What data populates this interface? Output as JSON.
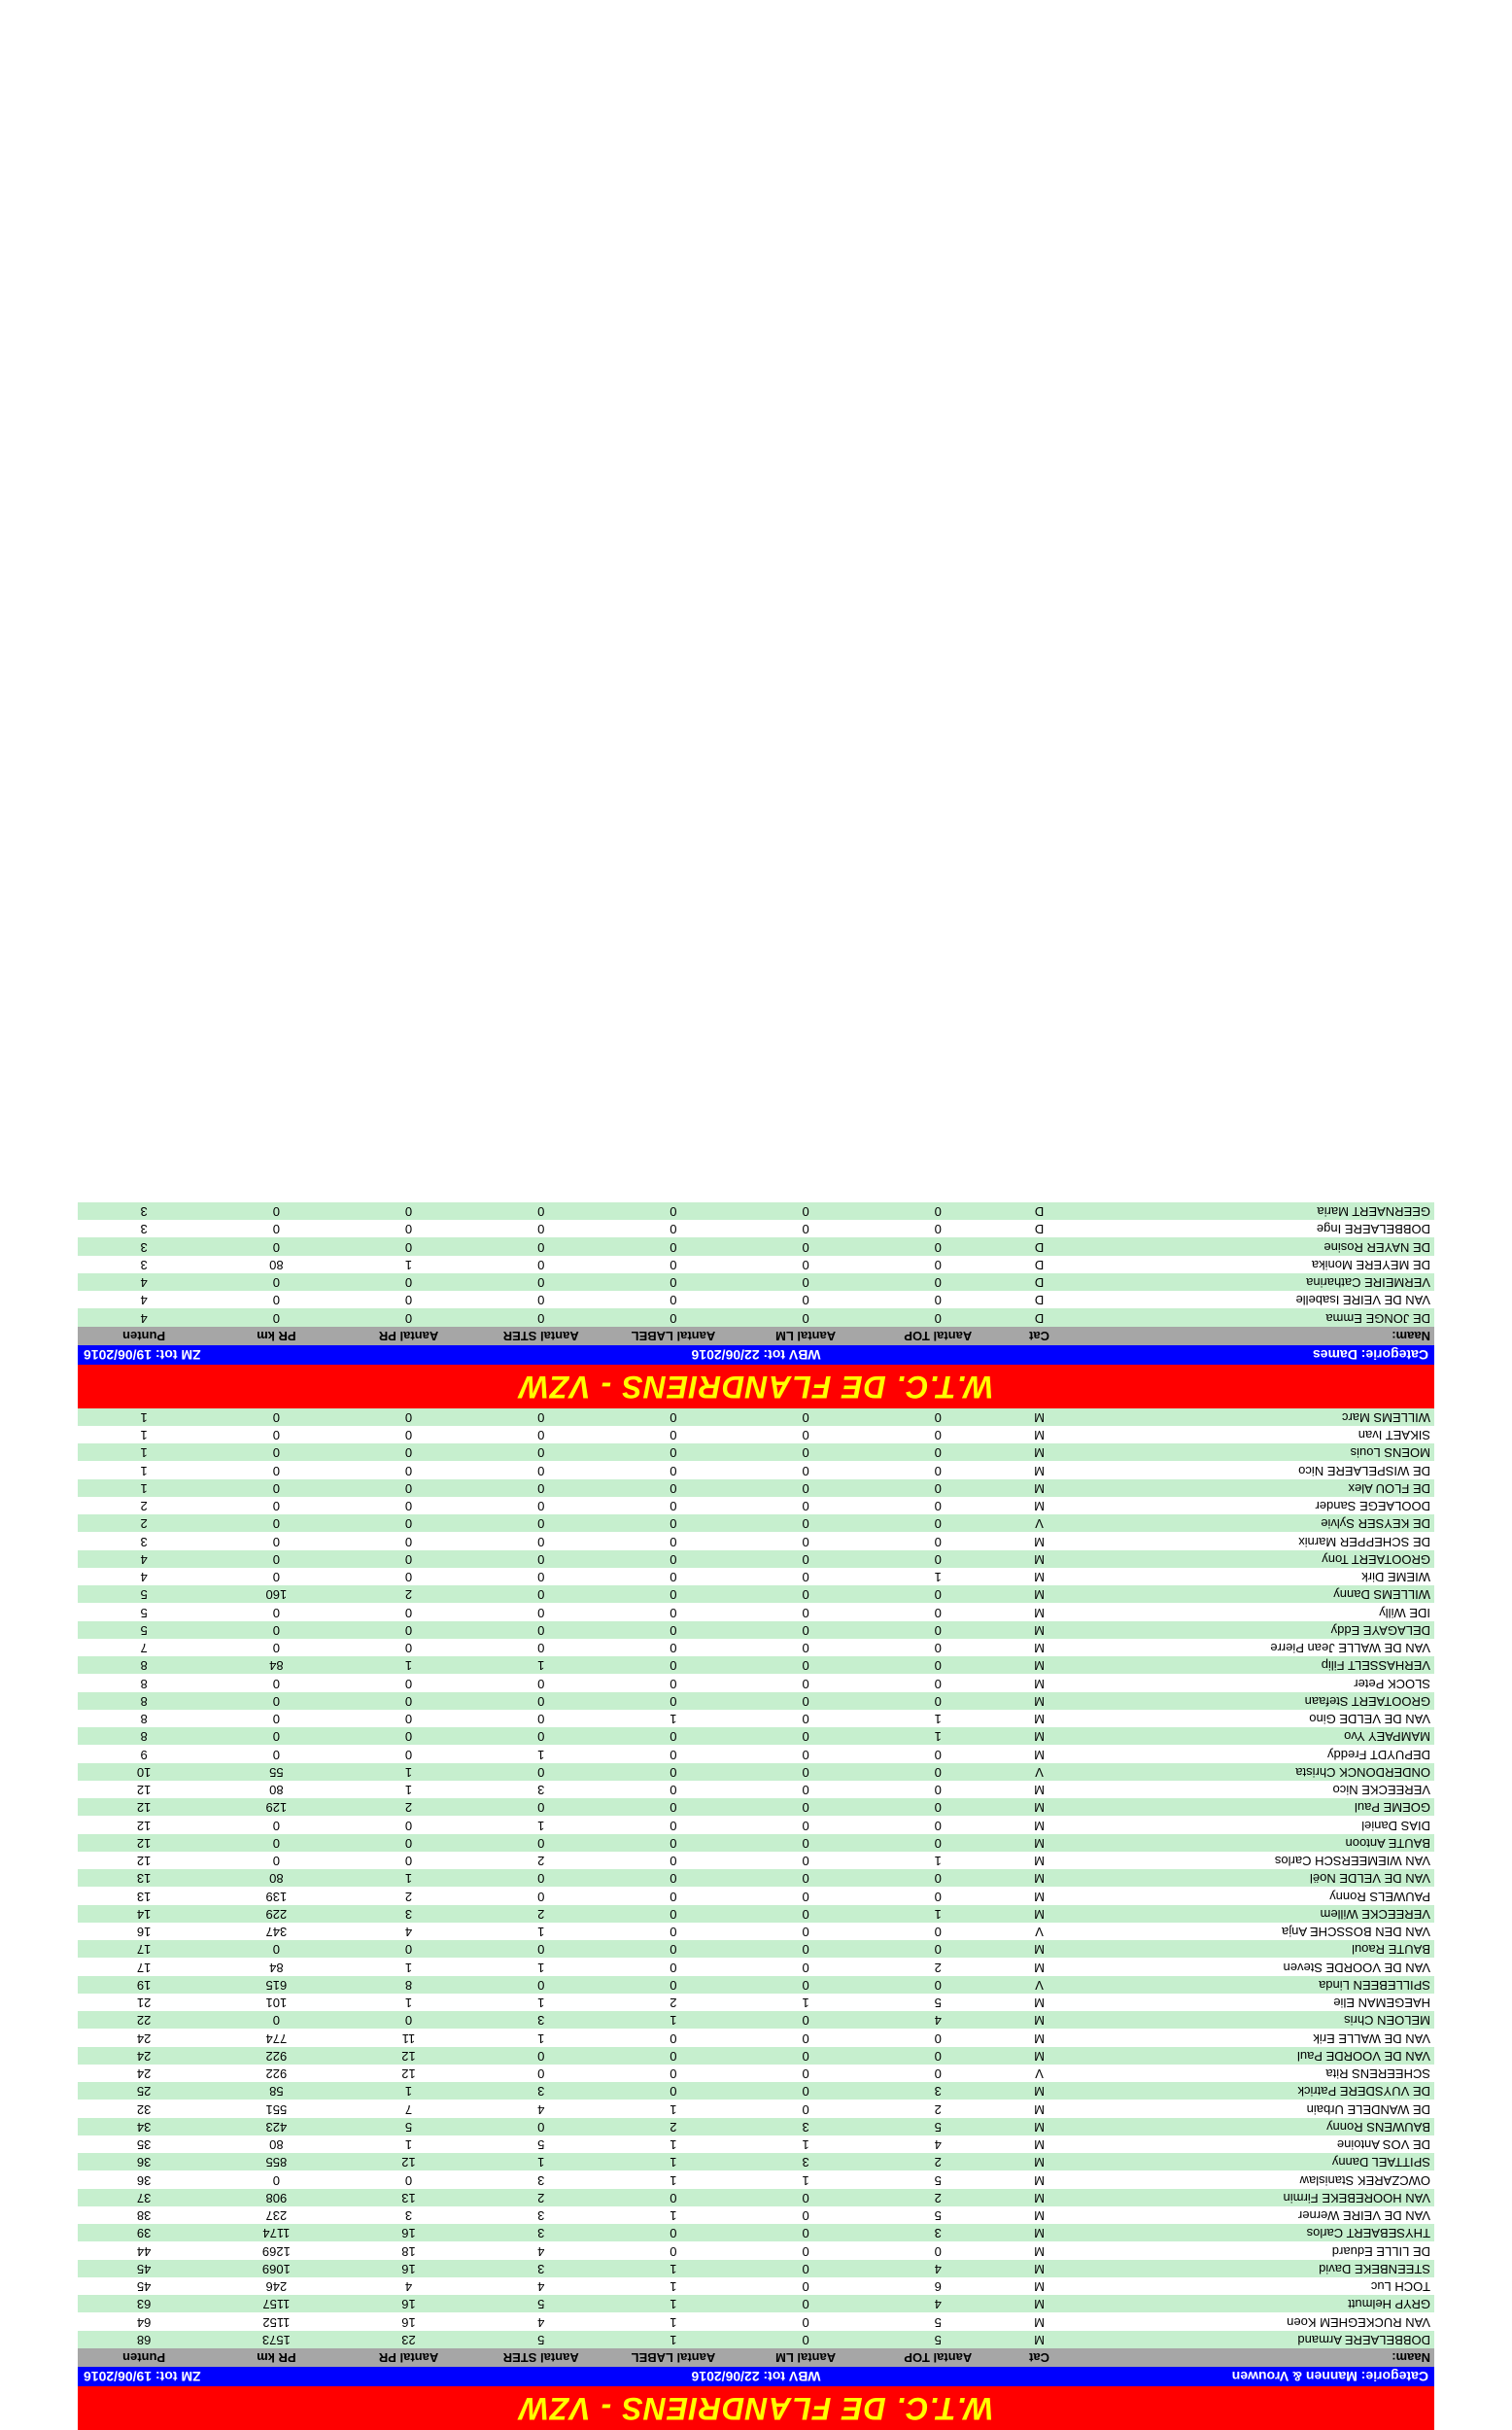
{
  "title": "W.T.C. DE FLANDRIENS - VZW",
  "catrow1_left": "Categorie: Mannen & Vrouwen",
  "catrow1_mid": "WBV tot: 22/06/2016",
  "catrow1_right": "ZM tot: 19/06/2016",
  "catrow2_left": "Categorie: Dames",
  "catrow2_mid": "WBV tot: 22/06/2016",
  "catrow2_right": "ZM tot: 19/06/2016",
  "headers": [
    "Naam:",
    "Cat",
    "Aantal TOP",
    "Aantal LM",
    "Aantal LABEL",
    "Aantal STER",
    "Aantal PR",
    "PR km",
    "Punten"
  ],
  "rows1": [
    [
      "DOBBELAERE Armand",
      "M",
      "5",
      "0",
      "1",
      "5",
      "23",
      "1573",
      "68"
    ],
    [
      "VAN RUCKEGHEM Koen",
      "M",
      "5",
      "0",
      "1",
      "4",
      "16",
      "1152",
      "64"
    ],
    [
      "GRYP Helmutt",
      "M",
      "4",
      "0",
      "1",
      "5",
      "16",
      "1157",
      "63"
    ],
    [
      "TOCH Luc",
      "M",
      "6",
      "0",
      "1",
      "4",
      "4",
      "246",
      "45"
    ],
    [
      "STEENBEKE David",
      "M",
      "4",
      "0",
      "1",
      "3",
      "16",
      "1069",
      "45"
    ],
    [
      "DE LILLE Eduard",
      "M",
      "0",
      "0",
      "0",
      "4",
      "18",
      "1269",
      "44"
    ],
    [
      "THYSEBAERT Carlos",
      "M",
      "3",
      "0",
      "0",
      "3",
      "16",
      "1174",
      "39"
    ],
    [
      "VAN DE VEIRE Werner",
      "M",
      "5",
      "0",
      "1",
      "3",
      "3",
      "237",
      "38"
    ],
    [
      "VAN HOOREBEKE Firmin",
      "M",
      "2",
      "0",
      "0",
      "2",
      "13",
      "908",
      "37"
    ],
    [
      "OWCZAREK Stanislaw",
      "M",
      "5",
      "1",
      "1",
      "3",
      "0",
      "0",
      "36"
    ],
    [
      "SPITTAEL Danny",
      "M",
      "2",
      "3",
      "1",
      "1",
      "12",
      "855",
      "36"
    ],
    [
      "DE VOS Antoine",
      "M",
      "4",
      "1",
      "1",
      "5",
      "1",
      "80",
      "35"
    ],
    [
      "BAUWENS Ronny",
      "M",
      "5",
      "3",
      "2",
      "0",
      "5",
      "423",
      "34"
    ],
    [
      "DE WANDELE Urbain",
      "M",
      "2",
      "0",
      "1",
      "4",
      "7",
      "551",
      "32"
    ],
    [
      "DE VUYSDERE Patrick",
      "M",
      "3",
      "0",
      "0",
      "3",
      "1",
      "58",
      "25"
    ],
    [
      "SCHEERENS Rita",
      "V",
      "0",
      "0",
      "0",
      "0",
      "12",
      "922",
      "24"
    ],
    [
      "VAN DE VOORDE Paul",
      "M",
      "0",
      "0",
      "0",
      "0",
      "12",
      "922",
      "24"
    ],
    [
      "VAN DE WALLE Erik",
      "M",
      "0",
      "0",
      "0",
      "1",
      "11",
      "774",
      "24"
    ],
    [
      "MELOEN Chris",
      "M",
      "4",
      "0",
      "1",
      "3",
      "0",
      "0",
      "22"
    ],
    [
      "HAEGEMAN Elie",
      "M",
      "5",
      "1",
      "2",
      "1",
      "1",
      "101",
      "21"
    ],
    [
      "SPILLEBEEN Linda",
      "V",
      "0",
      "0",
      "0",
      "0",
      "8",
      "615",
      "19"
    ],
    [
      "VAN DE VOORDE Steven",
      "M",
      "2",
      "0",
      "0",
      "1",
      "1",
      "84",
      "17"
    ],
    [
      "BAUTE Raoul",
      "M",
      "0",
      "0",
      "0",
      "0",
      "0",
      "0",
      "17"
    ],
    [
      "VAN DEN BOSSCHE Anja",
      "V",
      "0",
      "0",
      "0",
      "1",
      "4",
      "347",
      "16"
    ],
    [
      "VEREECKE Willem",
      "M",
      "1",
      "0",
      "0",
      "2",
      "3",
      "229",
      "14"
    ],
    [
      "PAUWELS Ronny",
      "M",
      "0",
      "0",
      "0",
      "0",
      "2",
      "139",
      "13"
    ],
    [
      "VAN DE VELDE Noël",
      "M",
      "0",
      "0",
      "0",
      "0",
      "1",
      "80",
      "13"
    ],
    [
      "VAN WIEMEERSCH Carlos",
      "M",
      "1",
      "0",
      "0",
      "2",
      "0",
      "0",
      "12"
    ],
    [
      "BAUTE Antoon",
      "M",
      "0",
      "0",
      "0",
      "0",
      "0",
      "0",
      "12"
    ],
    [
      "DIAS Daniel",
      "M",
      "0",
      "0",
      "0",
      "1",
      "0",
      "0",
      "12"
    ],
    [
      "GOEME Paul",
      "M",
      "0",
      "0",
      "0",
      "0",
      "2",
      "129",
      "12"
    ],
    [
      "VEREECKE Nico",
      "M",
      "0",
      "0",
      "0",
      "3",
      "1",
      "80",
      "12"
    ],
    [
      "ONDERDONCK Christa",
      "V",
      "0",
      "0",
      "0",
      "0",
      "1",
      "55",
      "10"
    ],
    [
      "DEPUYDT Freddy",
      "M",
      "0",
      "0",
      "0",
      "1",
      "0",
      "0",
      "9"
    ],
    [
      "MAMPAEY Yvo",
      "M",
      "1",
      "0",
      "0",
      "0",
      "0",
      "0",
      "8"
    ],
    [
      "VAN DE VELDE Gino",
      "M",
      "1",
      "0",
      "1",
      "0",
      "0",
      "0",
      "8"
    ],
    [
      "GROOTAERT Stefaan",
      "M",
      "0",
      "0",
      "0",
      "0",
      "0",
      "0",
      "8"
    ],
    [
      "SLOCK Peter",
      "M",
      "0",
      "0",
      "0",
      "0",
      "0",
      "0",
      "8"
    ],
    [
      "VERHASSELT Filip",
      "M",
      "0",
      "0",
      "0",
      "1",
      "1",
      "84",
      "8"
    ],
    [
      "VAN DE WALLE Jean Pierre",
      "M",
      "0",
      "0",
      "0",
      "0",
      "0",
      "0",
      "7"
    ],
    [
      "DELAGAYE Eddy",
      "M",
      "0",
      "0",
      "0",
      "0",
      "0",
      "0",
      "5"
    ],
    [
      "IDE Willy",
      "M",
      "0",
      "0",
      "0",
      "0",
      "0",
      "0",
      "5"
    ],
    [
      "WILLEMS Danny",
      "M",
      "0",
      "0",
      "0",
      "0",
      "2",
      "160",
      "5"
    ],
    [
      "WIEME Dirk",
      "M",
      "1",
      "0",
      "0",
      "0",
      "0",
      "0",
      "4"
    ],
    [
      "GROOTAERT Tony",
      "M",
      "0",
      "0",
      "0",
      "0",
      "0",
      "0",
      "4"
    ],
    [
      "DE SCHEPPER Marnix",
      "M",
      "0",
      "0",
      "0",
      "0",
      "0",
      "0",
      "3"
    ],
    [
      "DE KEYSER Sylvie",
      "V",
      "0",
      "0",
      "0",
      "0",
      "0",
      "0",
      "2"
    ],
    [
      "DOOLAEGE Sander",
      "M",
      "0",
      "0",
      "0",
      "0",
      "0",
      "0",
      "2"
    ],
    [
      "DE FLOU Alex",
      "M",
      "0",
      "0",
      "0",
      "0",
      "0",
      "0",
      "1"
    ],
    [
      "DE WISPELAERE Nico",
      "M",
      "0",
      "0",
      "0",
      "0",
      "0",
      "0",
      "1"
    ],
    [
      "MOENS Louis",
      "M",
      "0",
      "0",
      "0",
      "0",
      "0",
      "0",
      "1"
    ],
    [
      "SIKAET Ivan",
      "M",
      "0",
      "0",
      "0",
      "0",
      "0",
      "0",
      "1"
    ],
    [
      "WILLEMS Marc",
      "M",
      "0",
      "0",
      "0",
      "0",
      "0",
      "0",
      "1"
    ]
  ],
  "rows2": [
    [
      "DE JONGE Emma",
      "D",
      "0",
      "0",
      "0",
      "0",
      "0",
      "0",
      "4"
    ],
    [
      "VAN DE VEIRE Isabelle",
      "D",
      "0",
      "0",
      "0",
      "0",
      "0",
      "0",
      "4"
    ],
    [
      "VERMEIRE Catharina",
      "D",
      "0",
      "0",
      "0",
      "0",
      "0",
      "0",
      "4"
    ],
    [
      "DE MEYERE Monika",
      "D",
      "0",
      "0",
      "0",
      "0",
      "1",
      "80",
      "3"
    ],
    [
      "DE NAYER Rosine",
      "D",
      "0",
      "0",
      "0",
      "0",
      "0",
      "0",
      "3"
    ],
    [
      "DOBBELAERE Inge",
      "D",
      "0",
      "0",
      "0",
      "0",
      "0",
      "0",
      "3"
    ],
    [
      "GEERNAERT Maria",
      "D",
      "0",
      "0",
      "0",
      "0",
      "0",
      "0",
      "3"
    ]
  ]
}
